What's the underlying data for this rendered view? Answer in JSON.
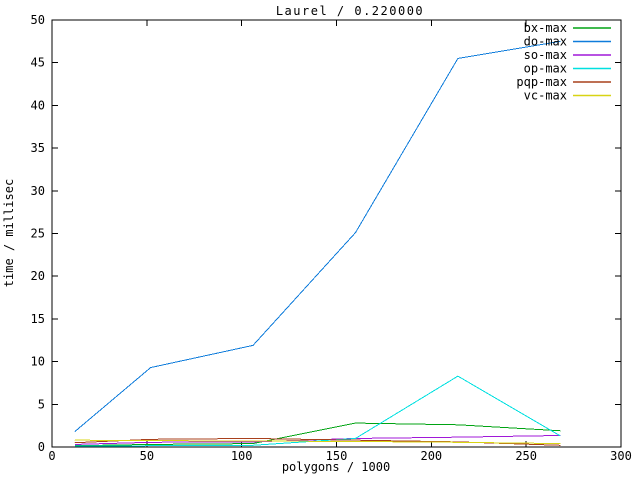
{
  "chart_data": {
    "type": "line",
    "title": "Laurel / 0.220000",
    "xlabel": "polygons / 1000",
    "ylabel": "time / millisec",
    "xlim": [
      0,
      300
    ],
    "ylim": [
      0,
      50
    ],
    "xticks": [
      0,
      50,
      100,
      150,
      200,
      250,
      300
    ],
    "yticks": [
      0,
      5,
      10,
      15,
      20,
      25,
      30,
      35,
      40,
      45,
      50
    ],
    "grid": false,
    "legend_position": "top-right-inside",
    "x": [
      12,
      52,
      106,
      160,
      214,
      268
    ],
    "series": [
      {
        "name": "bx-max",
        "color": "#00a313",
        "values": [
          0.15,
          0.3,
          0.4,
          2.8,
          2.6,
          1.9
        ]
      },
      {
        "name": "do-max",
        "color": "#0f7cdb",
        "values": [
          1.8,
          9.3,
          11.9,
          25.1,
          45.5,
          47.5
        ]
      },
      {
        "name": "so-max",
        "color": "#a018d8",
        "values": [
          0.3,
          0.55,
          0.6,
          1.0,
          1.15,
          1.35
        ]
      },
      {
        "name": "op-max",
        "color": "#00e0e0",
        "values": [
          0.1,
          0.15,
          0.2,
          1.0,
          8.3,
          1.3
        ]
      },
      {
        "name": "pqp-max",
        "color": "#a8401c",
        "values": [
          0.5,
          0.9,
          1.0,
          0.8,
          0.6,
          0.2
        ]
      },
      {
        "name": "vc-max",
        "color": "#d8d414",
        "values": [
          0.8,
          0.75,
          0.7,
          0.65,
          0.55,
          0.4
        ]
      }
    ],
    "axis_color": "#000000",
    "background_color": "#ffffff"
  }
}
